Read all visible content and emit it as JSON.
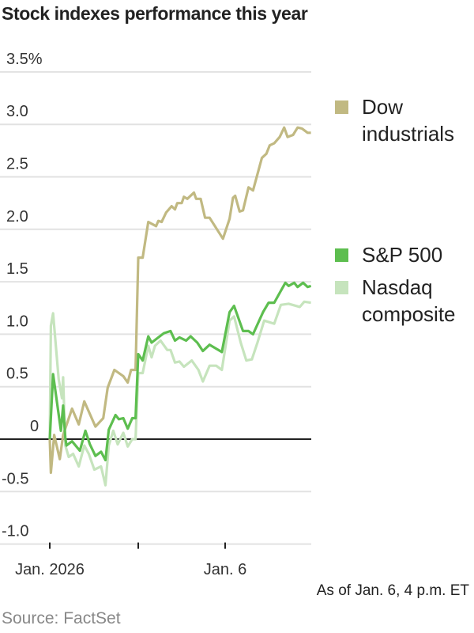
{
  "title": "Stock indexes performance this year",
  "note": "As of Jan. 6, 4 p.m. ET",
  "source": "Source: FactSet",
  "chart_data": {
    "type": "line",
    "title": "Stock indexes performance this year",
    "xlabel": "",
    "ylabel": "",
    "y_unit": "%",
    "ylim": [
      -1.0,
      3.5
    ],
    "yticks": [
      3.5,
      3.0,
      2.5,
      2.0,
      1.5,
      1.0,
      0.5,
      0,
      -0.5,
      -1.0
    ],
    "ytick_labels": [
      "3.5%",
      "3.0",
      "2.5",
      "2.0",
      "1.5",
      "1.0",
      "0.5",
      "0",
      "-0.5",
      "-1.0"
    ],
    "xtick_labels": [
      "Jan. 2026",
      "",
      "Jan. 6"
    ],
    "sessions": [
      "2026-01-02",
      "2026-01-05",
      "2026-01-06"
    ],
    "session_hours": [
      "09:30",
      "16:00"
    ],
    "grid": true,
    "legend_placement": "right",
    "series": [
      {
        "name": "Dow industrials",
        "color": "#c1b982",
        "points": {
          "2026-01-02": [
            [
              "09:30",
              0.0
            ],
            [
              "09:35",
              -0.32
            ],
            [
              "09:50",
              0.04
            ],
            [
              "10:15",
              -0.19
            ],
            [
              "10:30",
              0.04
            ],
            [
              "11:10",
              0.29
            ],
            [
              "11:40",
              0.14
            ],
            [
              "12:05",
              0.36
            ],
            [
              "12:55",
              0.12
            ],
            [
              "13:30",
              0.2
            ],
            [
              "13:50",
              0.49
            ],
            [
              "14:20",
              0.66
            ],
            [
              "15:00",
              0.6
            ],
            [
              "15:20",
              0.54
            ],
            [
              "15:35",
              0.66
            ],
            [
              "15:55",
              0.66
            ]
          ],
          "2026-01-05": [
            [
              "09:30",
              1.73
            ],
            [
              "09:50",
              1.73
            ],
            [
              "10:15",
              2.07
            ],
            [
              "10:50",
              2.03
            ],
            [
              "11:00",
              2.08
            ],
            [
              "11:15",
              2.07
            ],
            [
              "11:35",
              2.16
            ],
            [
              "12:00",
              2.22
            ],
            [
              "12:15",
              2.19
            ],
            [
              "12:25",
              2.25
            ],
            [
              "12:45",
              2.25
            ],
            [
              "12:55",
              2.31
            ],
            [
              "13:10",
              2.29
            ],
            [
              "13:40",
              2.35
            ],
            [
              "13:50",
              2.29
            ],
            [
              "14:10",
              2.29
            ],
            [
              "14:30",
              2.11
            ],
            [
              "14:50",
              2.11
            ],
            [
              "15:50",
              1.91
            ]
          ],
          "2026-01-06": [
            [
              "09:50",
              2.1
            ],
            [
              "10:05",
              2.3
            ],
            [
              "10:15",
              2.32
            ],
            [
              "10:35",
              2.17
            ],
            [
              "10:50",
              2.18
            ],
            [
              "11:15",
              2.4
            ],
            [
              "11:35",
              2.37
            ],
            [
              "12:15",
              2.68
            ],
            [
              "12:35",
              2.72
            ],
            [
              "12:50",
              2.8
            ],
            [
              "13:10",
              2.82
            ],
            [
              "13:35",
              2.88
            ],
            [
              "13:55",
              2.97
            ],
            [
              "14:10",
              2.88
            ],
            [
              "14:35",
              2.9
            ],
            [
              "14:55",
              2.97
            ],
            [
              "15:15",
              2.96
            ],
            [
              "15:40",
              2.92
            ],
            [
              "15:55",
              2.92
            ]
          ]
        }
      },
      {
        "name": "Nasdaq composite",
        "color": "#c6e4bd",
        "points": {
          "2026-01-02": [
            [
              "09:30",
              0.0
            ],
            [
              "09:35",
              1.08
            ],
            [
              "09:45",
              1.2
            ],
            [
              "10:10",
              0.57
            ],
            [
              "10:25",
              0.39
            ],
            [
              "10:30",
              0.59
            ],
            [
              "10:40",
              -0.06
            ],
            [
              "10:55",
              -0.17
            ],
            [
              "11:15",
              -0.14
            ],
            [
              "11:40",
              -0.26
            ],
            [
              "12:05",
              -0.06
            ],
            [
              "12:25",
              -0.14
            ],
            [
              "12:50",
              -0.29
            ],
            [
              "13:20",
              -0.26
            ],
            [
              "13:40",
              -0.44
            ],
            [
              "13:55",
              -0.06
            ],
            [
              "14:15",
              0.08
            ],
            [
              "14:35",
              -0.05
            ],
            [
              "15:00",
              0.06
            ],
            [
              "15:20",
              -0.07
            ],
            [
              "15:40",
              0.0
            ],
            [
              "15:55",
              0.0
            ]
          ],
          "2026-01-05": [
            [
              "09:30",
              0.63
            ],
            [
              "09:50",
              0.63
            ],
            [
              "10:15",
              0.89
            ],
            [
              "10:30",
              0.78
            ],
            [
              "10:45",
              0.89
            ],
            [
              "11:10",
              0.94
            ],
            [
              "11:40",
              0.85
            ],
            [
              "11:55",
              0.85
            ],
            [
              "12:15",
              0.73
            ],
            [
              "12:35",
              0.74
            ],
            [
              "12:55",
              0.69
            ],
            [
              "13:30",
              0.75
            ],
            [
              "14:00",
              0.66
            ],
            [
              "14:20",
              0.55
            ],
            [
              "14:50",
              0.7
            ],
            [
              "15:20",
              0.7
            ],
            [
              "15:45",
              0.66
            ]
          ],
          "2026-01-06": [
            [
              "09:50",
              1.13
            ],
            [
              "10:10",
              1.17
            ],
            [
              "10:40",
              0.92
            ],
            [
              "11:05",
              0.75
            ],
            [
              "11:30",
              0.76
            ],
            [
              "11:55",
              0.92
            ],
            [
              "12:25",
              1.13
            ],
            [
              "13:10",
              1.1
            ],
            [
              "13:40",
              1.28
            ],
            [
              "14:15",
              1.29
            ],
            [
              "15:05",
              1.26
            ],
            [
              "15:25",
              1.31
            ],
            [
              "15:55",
              1.3
            ]
          ]
        }
      },
      {
        "name": "S&P 500",
        "color": "#5dbe4f",
        "points": {
          "2026-01-02": [
            [
              "09:30",
              0.0
            ],
            [
              "09:45",
              0.62
            ],
            [
              "10:20",
              0.08
            ],
            [
              "10:30",
              0.32
            ],
            [
              "10:40",
              0.01
            ],
            [
              "10:45",
              -0.06
            ],
            [
              "11:10",
              -0.02
            ],
            [
              "11:45",
              -0.11
            ],
            [
              "12:10",
              0.08
            ],
            [
              "12:30",
              -0.05
            ],
            [
              "12:55",
              -0.16
            ],
            [
              "13:20",
              -0.12
            ],
            [
              "13:40",
              -0.2
            ],
            [
              "13:55",
              0.09
            ],
            [
              "14:25",
              0.23
            ],
            [
              "14:40",
              0.19
            ],
            [
              "15:00",
              0.2
            ],
            [
              "15:20",
              0.1
            ],
            [
              "15:40",
              0.2
            ],
            [
              "15:55",
              0.2
            ]
          ],
          "2026-01-05": [
            [
              "09:30",
              0.81
            ],
            [
              "09:50",
              0.75
            ],
            [
              "10:15",
              0.98
            ],
            [
              "10:30",
              0.92
            ],
            [
              "11:25",
              1.01
            ],
            [
              "11:55",
              1.03
            ],
            [
              "12:15",
              0.94
            ],
            [
              "12:35",
              0.97
            ],
            [
              "13:05",
              0.94
            ],
            [
              "13:25",
              0.98
            ],
            [
              "13:55",
              0.92
            ],
            [
              "14:20",
              0.84
            ],
            [
              "14:50",
              0.9
            ],
            [
              "15:45",
              0.83
            ]
          ],
          "2026-01-06": [
            [
              "09:50",
              1.21
            ],
            [
              "10:10",
              1.27
            ],
            [
              "10:50",
              1.03
            ],
            [
              "11:15",
              1.03
            ],
            [
              "11:35",
              1.0
            ],
            [
              "12:20",
              1.21
            ],
            [
              "12:45",
              1.3
            ],
            [
              "13:10",
              1.3
            ],
            [
              "14:00",
              1.49
            ],
            [
              "14:15",
              1.46
            ],
            [
              "14:40",
              1.49
            ],
            [
              "14:55",
              1.45
            ],
            [
              "15:20",
              1.49
            ],
            [
              "15:40",
              1.45
            ],
            [
              "15:55",
              1.46
            ]
          ]
        }
      }
    ]
  },
  "legend": [
    {
      "label_1": "Dow",
      "label_2": "industrials",
      "color": "#c1b982"
    },
    {
      "label_1": "S&P 500",
      "color": "#5dbe4f"
    },
    {
      "label_1": "Nasdaq",
      "label_2": "composite",
      "color": "#c6e4bd"
    }
  ]
}
